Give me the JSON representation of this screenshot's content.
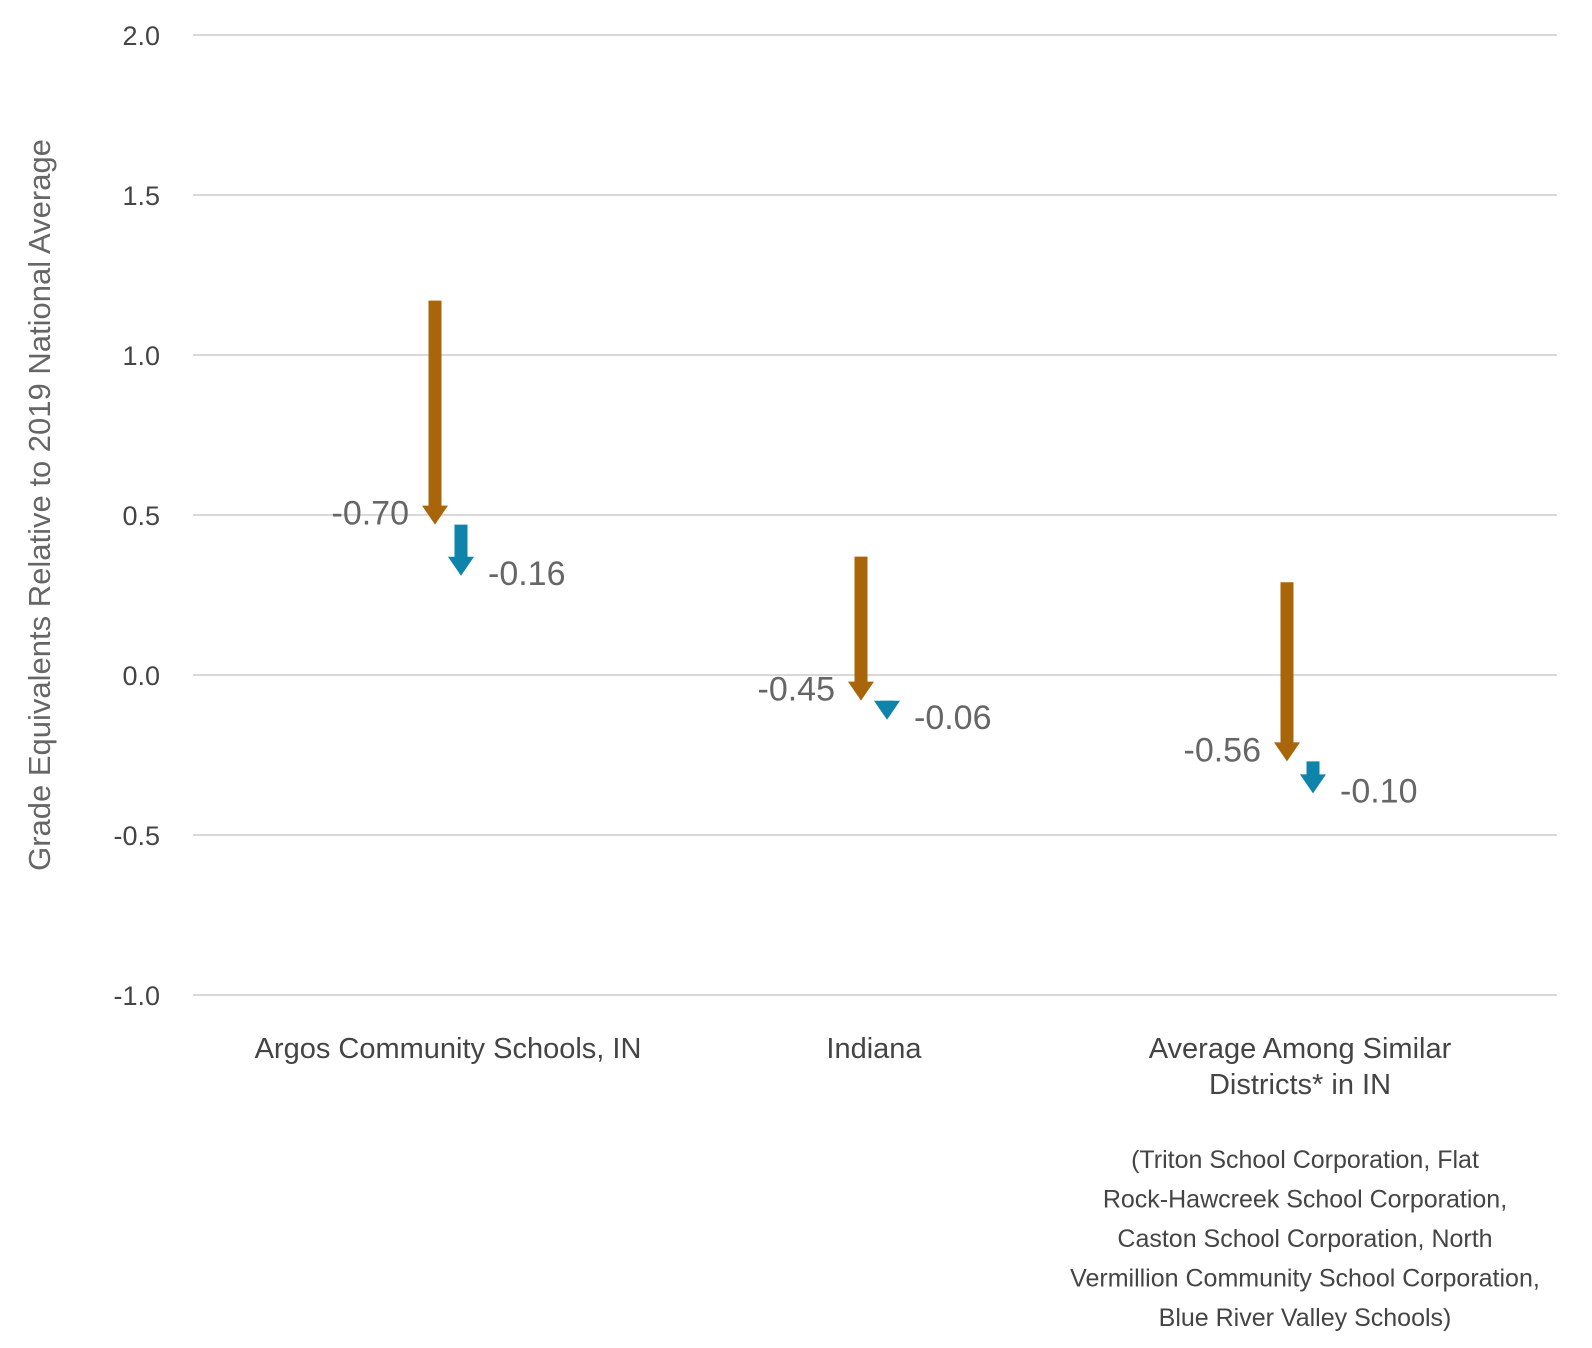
{
  "chart_data": {
    "type": "arrow",
    "ylabel": "Grade Equivalents Relative to 2019 National Average",
    "ylim": [
      -1.0,
      2.0
    ],
    "yticks": [
      "2.0",
      "1.5",
      "1.0",
      "0.5",
      "0.0",
      "-0.5",
      "-1.0"
    ],
    "grid": true,
    "categories": [
      [
        "Argos Community Schools, IN"
      ],
      [
        "Indiana"
      ],
      [
        "Average Among Similar",
        "Districts* in IN"
      ]
    ],
    "category_note": [
      "(Triton School Corporation, Flat",
      "Rock-Hawcreek School Corporation,",
      "Caston School Corporation, North",
      "Vermillion Community School Corporation,",
      "Blue River Valley Schools)"
    ],
    "series": [
      {
        "color": "#A8650A",
        "starts": [
          1.17,
          0.37,
          0.29
        ],
        "ends": [
          0.47,
          -0.08,
          -0.27
        ],
        "labels": [
          "-0.70",
          "-0.45",
          "-0.56"
        ]
      },
      {
        "color": "#0E84AA",
        "starts": [
          0.47,
          -0.08,
          -0.27
        ],
        "ends": [
          0.31,
          -0.14,
          -0.37
        ],
        "labels": [
          "-0.16",
          "-0.06",
          "-0.10"
        ]
      }
    ]
  }
}
